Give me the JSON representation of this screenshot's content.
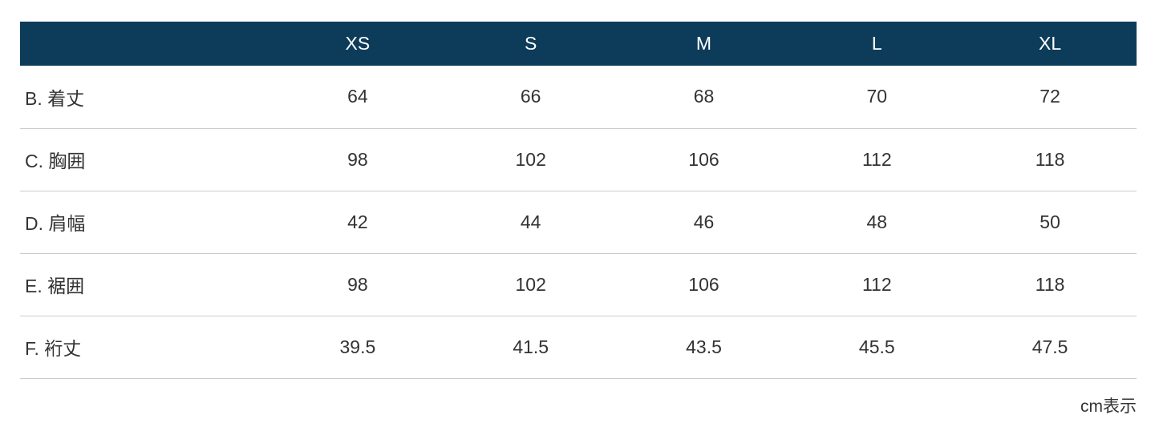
{
  "theme": {
    "header_bg": "#0d3c5a",
    "header_text": "#ffffff",
    "cell_text": "#333333",
    "divider": "#cccccc"
  },
  "table": {
    "columns": [
      "XS",
      "S",
      "M",
      "L",
      "XL"
    ],
    "rows": [
      {
        "label": "B. 着丈",
        "values": [
          "64",
          "66",
          "68",
          "70",
          "72"
        ]
      },
      {
        "label": "C. 胸囲",
        "values": [
          "98",
          "102",
          "106",
          "112",
          "118"
        ]
      },
      {
        "label": "D. 肩幅",
        "values": [
          "42",
          "44",
          "46",
          "48",
          "50"
        ]
      },
      {
        "label": "E. 裾囲",
        "values": [
          "98",
          "102",
          "106",
          "112",
          "118"
        ]
      },
      {
        "label": "F. 裄丈",
        "values": [
          "39.5",
          "41.5",
          "43.5",
          "45.5",
          "47.5"
        ]
      }
    ],
    "footer_note": "cm表示"
  }
}
